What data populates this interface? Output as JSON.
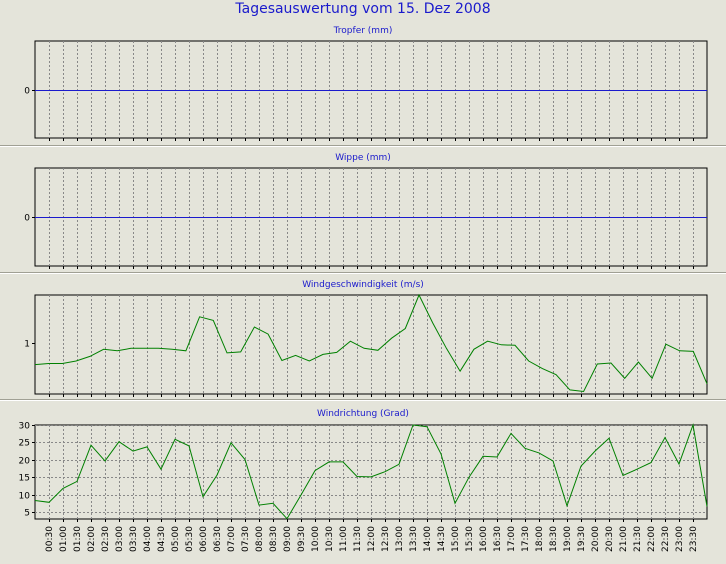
{
  "title": "Tagesauswertung vom 15. Dez 2008",
  "time_labels": [
    "00:30",
    "01:00",
    "01:30",
    "02:00",
    "02:30",
    "03:00",
    "03:30",
    "04:00",
    "04:30",
    "05:00",
    "05:30",
    "06:00",
    "06:30",
    "07:00",
    "07:30",
    "08:00",
    "08:30",
    "09:00",
    "09:30",
    "10:00",
    "10:30",
    "11:00",
    "11:30",
    "12:00",
    "12:30",
    "13:00",
    "13:30",
    "14:00",
    "14:30",
    "15:00",
    "15:30",
    "16:00",
    "16:30",
    "17:00",
    "17:30",
    "18:00",
    "18:30",
    "19:00",
    "19:30",
    "20:00",
    "20:30",
    "21:00",
    "21:30",
    "22:00",
    "22:30",
    "23:00",
    "23:30"
  ],
  "colors": {
    "background": "#e4e4da",
    "title": "#1a1acc",
    "series": "#008000",
    "zero_line": "#1a1acc",
    "grid": "#888888"
  },
  "chart_data": [
    {
      "type": "line",
      "title": "Tropfer (mm)",
      "yticks": [
        0
      ],
      "ylim": [
        -1,
        1
      ],
      "series": [
        {
          "zero_line": true,
          "values": []
        }
      ]
    },
    {
      "type": "line",
      "title": "Wippe (mm)",
      "yticks": [
        0
      ],
      "ylim": [
        -1,
        1
      ],
      "series": [
        {
          "zero_line": true,
          "values": []
        }
      ]
    },
    {
      "type": "line",
      "title": "Windgeschwindigkeit (m/s)",
      "yticks": [
        1
      ],
      "ylim": [
        0,
        1.95
      ],
      "series": [
        {
          "values": [
            0.58,
            0.6,
            0.6,
            0.65,
            0.74,
            0.88,
            0.85,
            0.9,
            0.9,
            0.9,
            0.88,
            0.85,
            1.52,
            1.45,
            0.81,
            0.83,
            1.32,
            1.18,
            0.66,
            0.76,
            0.65,
            0.78,
            0.82,
            1.04,
            0.9,
            0.86,
            1.1,
            1.29,
            1.98,
            1.4,
            0.9,
            0.45,
            0.88,
            1.04,
            0.97,
            0.96,
            0.65,
            0.5,
            0.38,
            0.08,
            0.05,
            0.59,
            0.61,
            0.31,
            0.63,
            0.31,
            0.98,
            0.85,
            0.84,
            0.2
          ]
        }
      ]
    },
    {
      "type": "line",
      "title": "Windrichtung (Grad)",
      "yticks": [
        5,
        10,
        15,
        20,
        25,
        30
      ],
      "ylim": [
        3,
        30
      ],
      "series": [
        {
          "values": [
            8.3,
            7.8,
            11.8,
            13.8,
            24.2,
            19.7,
            25.2,
            22.5,
            23.7,
            17.3,
            25.9,
            24,
            9.4,
            15.6,
            24.9,
            20.1,
            7,
            7.5,
            3.1,
            9.9,
            16.9,
            19.4,
            19.4,
            15.2,
            15.1,
            16.6,
            18.7,
            30.6,
            29.5,
            21.7,
            7.5,
            15,
            21,
            20.8,
            27.6,
            23.3,
            22,
            19.7,
            6.8,
            18.2,
            22.5,
            26.2,
            15.5,
            17.3,
            19.2,
            26.4,
            18.8,
            30,
            6.6
          ]
        }
      ]
    }
  ]
}
